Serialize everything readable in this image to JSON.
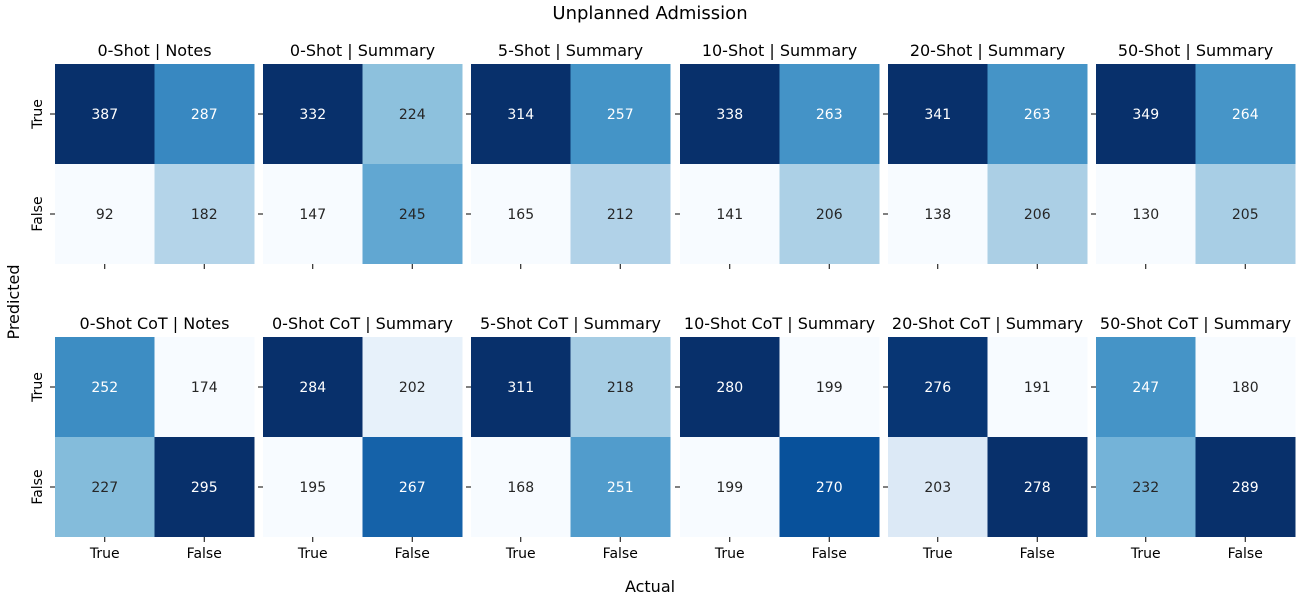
{
  "figure": {
    "title": "Unplanned Admission",
    "xlabel": "Actual",
    "ylabel": "Predicted"
  },
  "chart_data": [
    {
      "type": "heatmap",
      "title": "0-Shot | Notes",
      "x_categories": [
        "True",
        "False"
      ],
      "y_categories": [
        "True",
        "False"
      ],
      "values": [
        [
          387,
          287
        ],
        [
          92,
          182
        ]
      ]
    },
    {
      "type": "heatmap",
      "title": "0-Shot | Summary",
      "x_categories": [
        "True",
        "False"
      ],
      "y_categories": [
        "True",
        "False"
      ],
      "values": [
        [
          332,
          224
        ],
        [
          147,
          245
        ]
      ]
    },
    {
      "type": "heatmap",
      "title": "5-Shot | Summary",
      "x_categories": [
        "True",
        "False"
      ],
      "y_categories": [
        "True",
        "False"
      ],
      "values": [
        [
          314,
          257
        ],
        [
          165,
          212
        ]
      ]
    },
    {
      "type": "heatmap",
      "title": "10-Shot | Summary",
      "x_categories": [
        "True",
        "False"
      ],
      "y_categories": [
        "True",
        "False"
      ],
      "values": [
        [
          338,
          263
        ],
        [
          141,
          206
        ]
      ]
    },
    {
      "type": "heatmap",
      "title": "20-Shot | Summary",
      "x_categories": [
        "True",
        "False"
      ],
      "y_categories": [
        "True",
        "False"
      ],
      "values": [
        [
          341,
          263
        ],
        [
          138,
          206
        ]
      ]
    },
    {
      "type": "heatmap",
      "title": "50-Shot | Summary",
      "x_categories": [
        "True",
        "False"
      ],
      "y_categories": [
        "True",
        "False"
      ],
      "values": [
        [
          349,
          264
        ],
        [
          130,
          205
        ]
      ]
    },
    {
      "type": "heatmap",
      "title": "0-Shot CoT | Notes",
      "x_categories": [
        "True",
        "False"
      ],
      "y_categories": [
        "True",
        "False"
      ],
      "values": [
        [
          252,
          174
        ],
        [
          227,
          295
        ]
      ]
    },
    {
      "type": "heatmap",
      "title": "0-Shot CoT | Summary",
      "x_categories": [
        "True",
        "False"
      ],
      "y_categories": [
        "True",
        "False"
      ],
      "values": [
        [
          284,
          202
        ],
        [
          195,
          267
        ]
      ]
    },
    {
      "type": "heatmap",
      "title": "5-Shot CoT | Summary",
      "x_categories": [
        "True",
        "False"
      ],
      "y_categories": [
        "True",
        "False"
      ],
      "values": [
        [
          311,
          218
        ],
        [
          168,
          251
        ]
      ]
    },
    {
      "type": "heatmap",
      "title": "10-Shot CoT | Summary",
      "x_categories": [
        "True",
        "False"
      ],
      "y_categories": [
        "True",
        "False"
      ],
      "values": [
        [
          280,
          199
        ],
        [
          199,
          270
        ]
      ]
    },
    {
      "type": "heatmap",
      "title": "20-Shot CoT | Summary",
      "x_categories": [
        "True",
        "False"
      ],
      "y_categories": [
        "True",
        "False"
      ],
      "values": [
        [
          276,
          191
        ],
        [
          203,
          278
        ]
      ]
    },
    {
      "type": "heatmap",
      "title": "50-Shot CoT | Summary",
      "x_categories": [
        "True",
        "False"
      ],
      "y_categories": [
        "True",
        "False"
      ],
      "values": [
        [
          247,
          180
        ],
        [
          232,
          289
        ]
      ]
    }
  ],
  "colormap": [
    "#f7fbff",
    "#deebf7",
    "#c6dbef",
    "#9ecae1",
    "#6baed6",
    "#4292c6",
    "#2171b5",
    "#08519c",
    "#08306b"
  ]
}
